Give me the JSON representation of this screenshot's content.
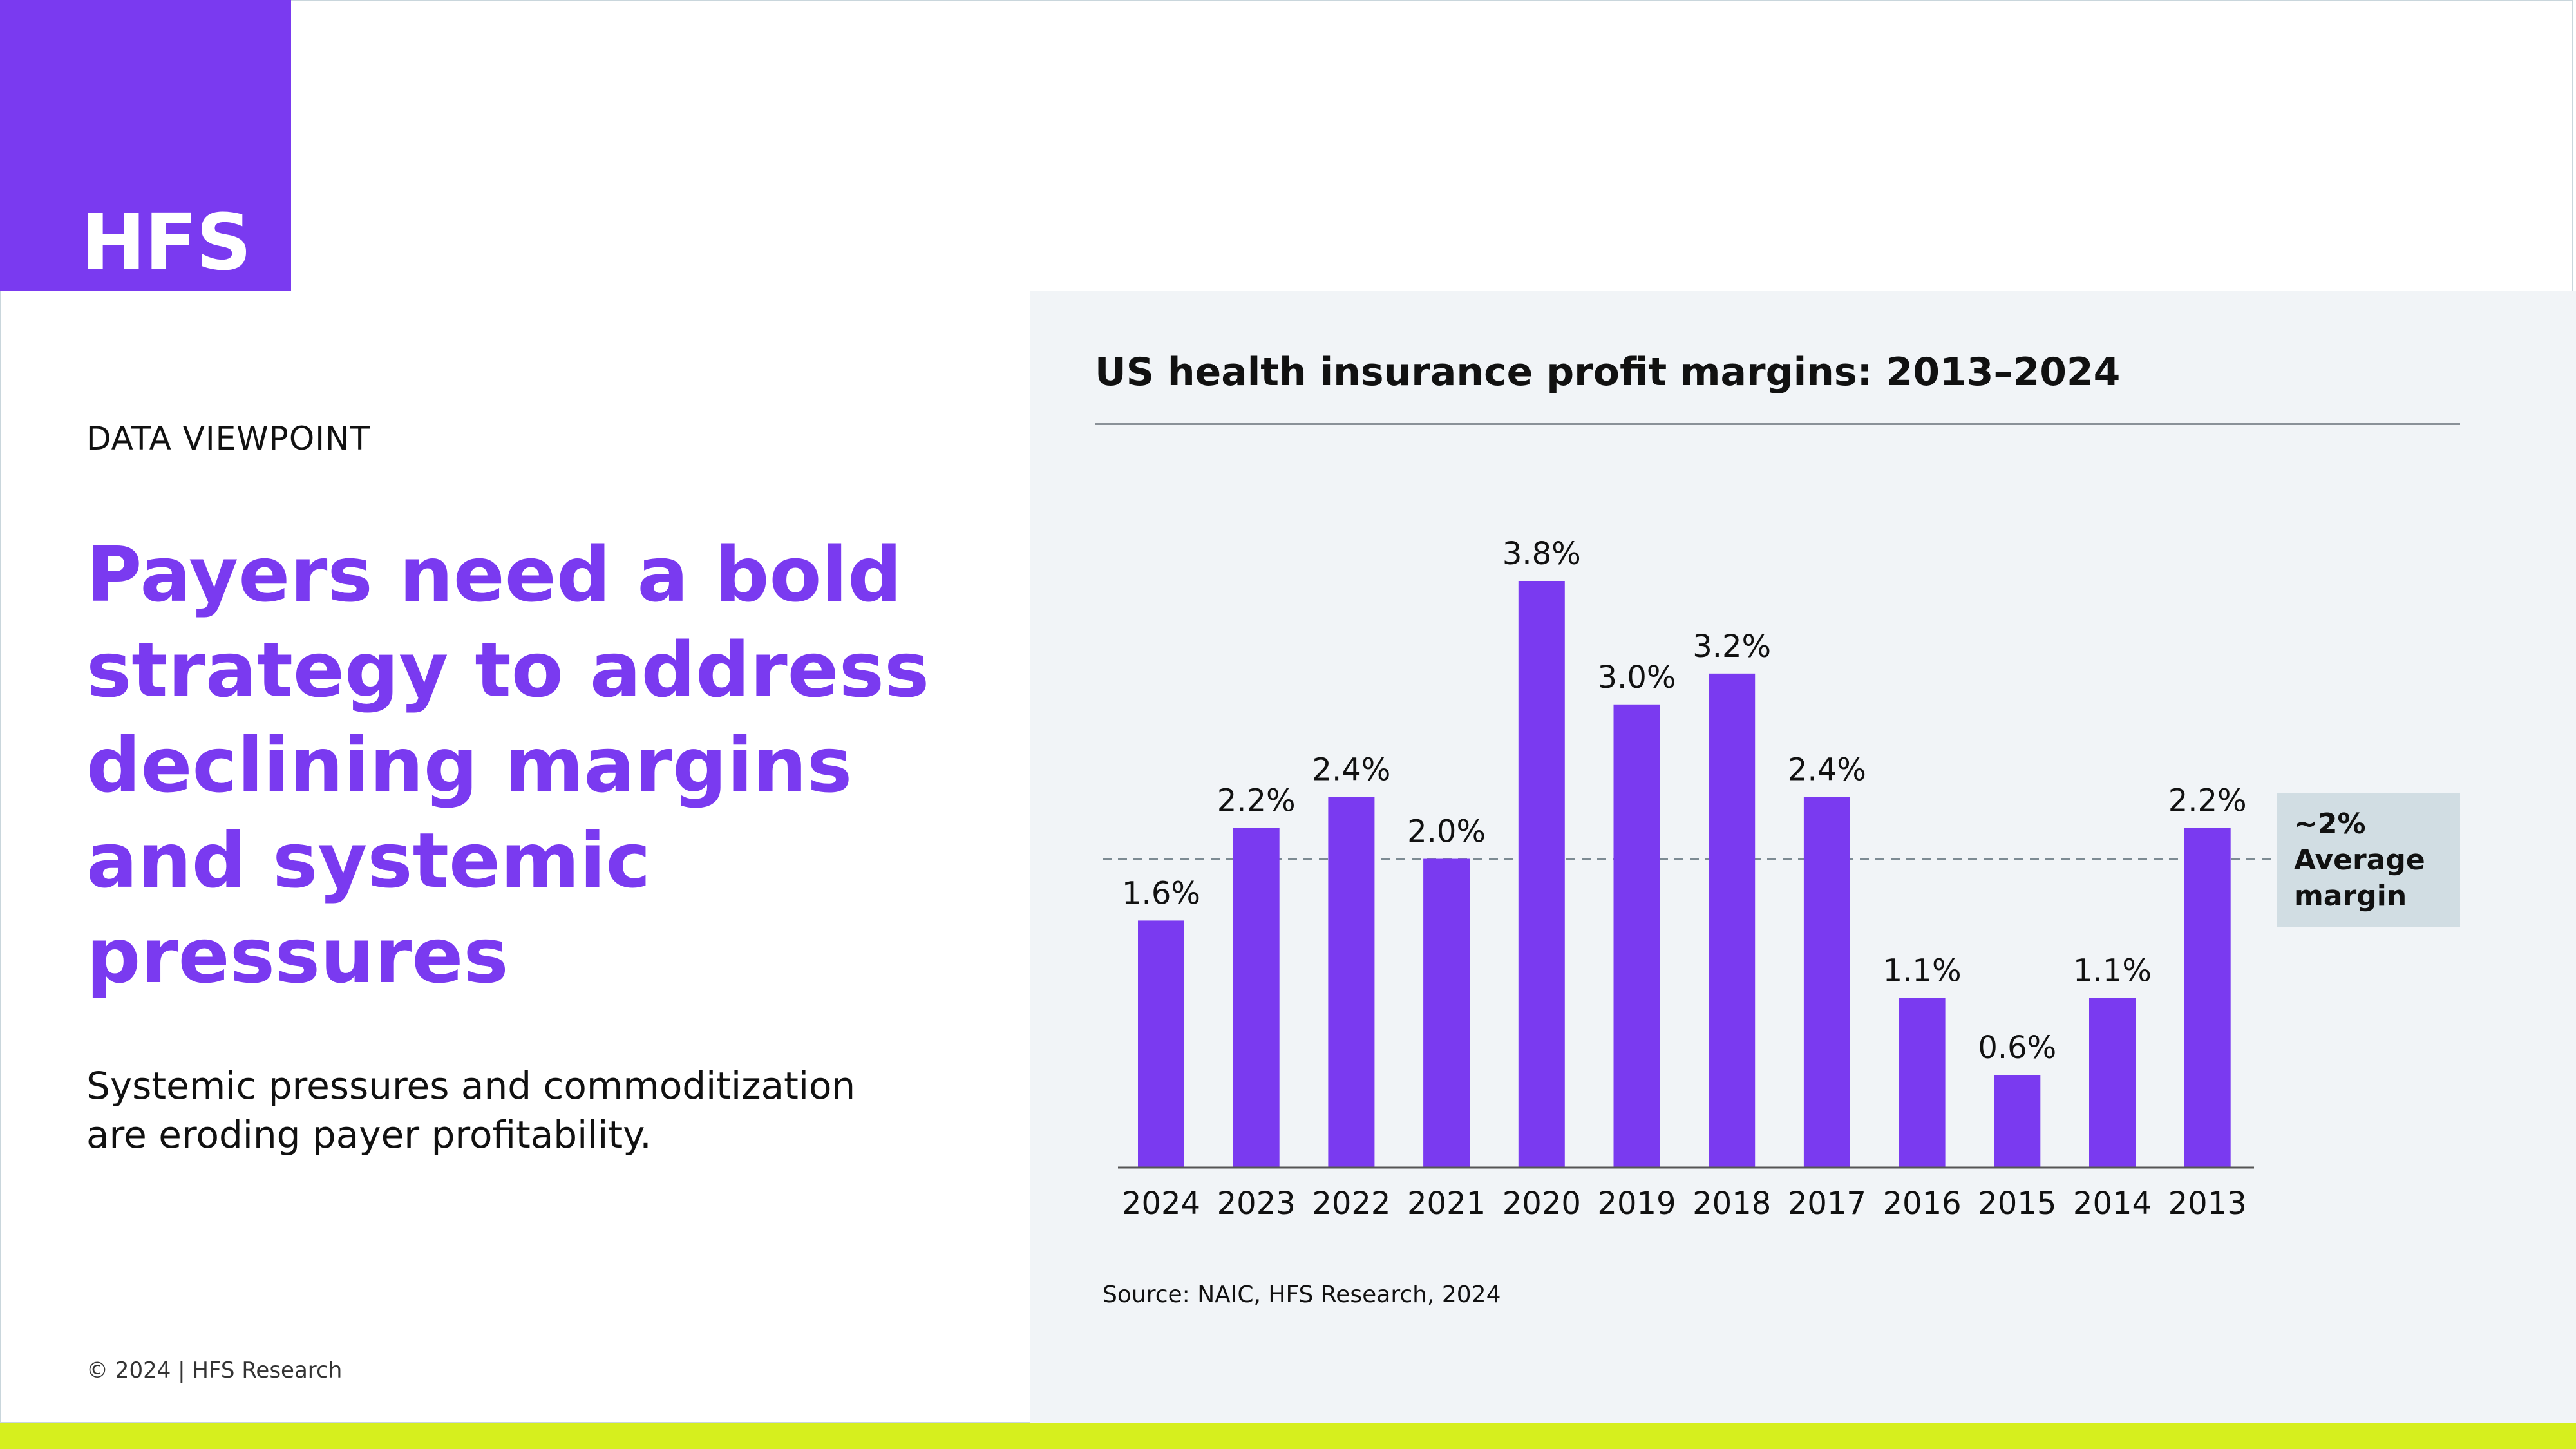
{
  "brand": {
    "logo_text": "HFS",
    "accent": "#7a3af0",
    "bar_color": "#7a3af0",
    "footer_bar": "#d6ef1e"
  },
  "left": {
    "eyebrow": "DATA VIEWPOINT",
    "headline_lines": [
      "Payers need a bold",
      "strategy to address",
      "declining margins",
      "and systemic",
      "pressures"
    ],
    "subtext_lines": [
      "Systemic pressures and commoditization",
      "are eroding payer profitability."
    ],
    "copyright": "© 2024 | HFS Research"
  },
  "chart_data": {
    "type": "bar",
    "title": "US health insurance profit margins: 2013–2024",
    "categories": [
      "2024",
      "2023",
      "2022",
      "2021",
      "2020",
      "2019",
      "2018",
      "2017",
      "2016",
      "2015",
      "2014",
      "2013"
    ],
    "values": [
      1.6,
      2.2,
      2.4,
      2.0,
      3.8,
      3.0,
      3.2,
      2.4,
      1.1,
      0.6,
      1.1,
      2.2
    ],
    "value_labels": [
      "1.6%",
      "2.2%",
      "2.4%",
      "2.0%",
      "3.8%",
      "3.0%",
      "3.2%",
      "2.4%",
      "1.1%",
      "0.6%",
      "1.1%",
      "2.2%"
    ],
    "reference_line": {
      "value": 2.0,
      "style": "dashed",
      "label_lines": [
        "~2%",
        "Average",
        "margin"
      ]
    },
    "ylim": [
      0,
      3.8
    ],
    "grid": false,
    "source": "Source: NAIC, HFS Research, 2024"
  }
}
